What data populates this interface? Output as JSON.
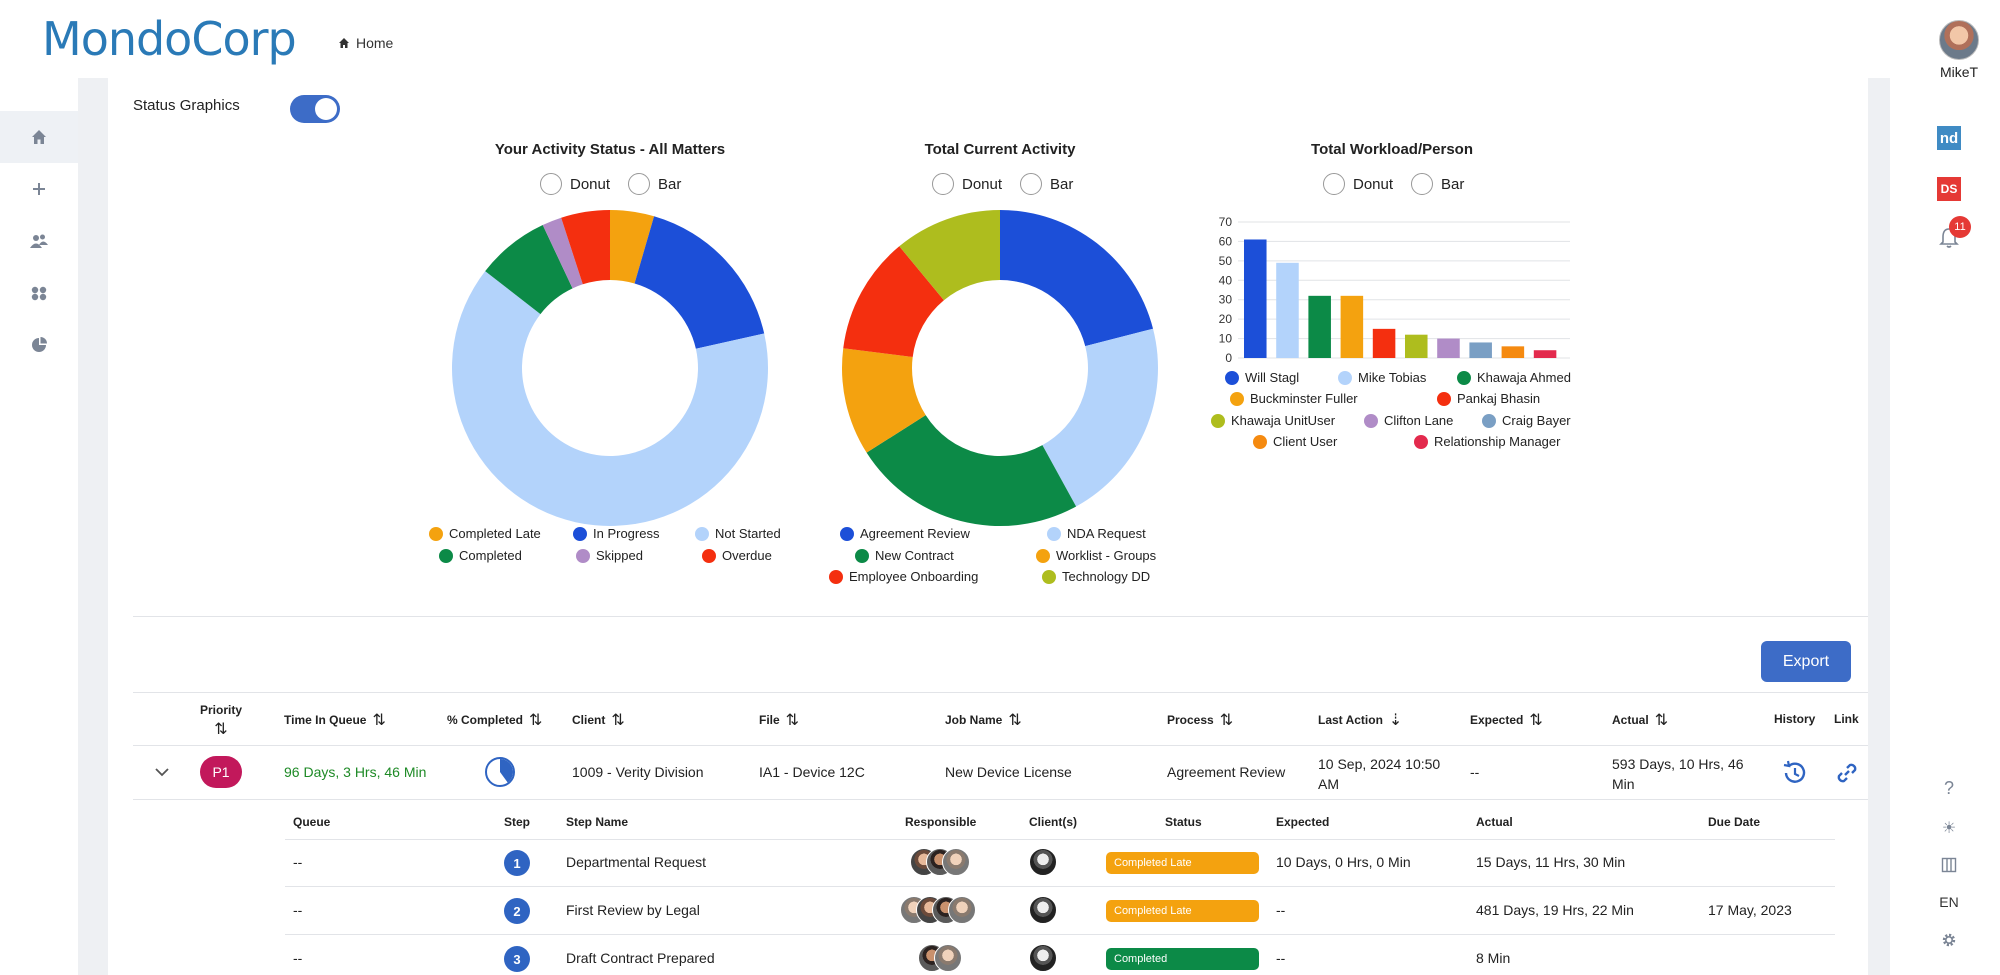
{
  "header": {
    "logo": "MondoCorp",
    "breadcrumb": "Home",
    "user_name": "MikeT"
  },
  "right_rail": {
    "nd_label": "nd",
    "ds_label": "DS",
    "notification_count": "11",
    "language": "EN"
  },
  "status_graphics": {
    "label": "Status Graphics",
    "toggle_on": true
  },
  "charts": {
    "activity": {
      "title": "Your Activity Status - All Matters",
      "opt_donut": "Donut",
      "opt_bar": "Bar",
      "legend": [
        {
          "label": "Completed Late",
          "color": "#f4a20f"
        },
        {
          "label": "In Progress",
          "color": "#1c4fd8"
        },
        {
          "label": "Not Started",
          "color": "#b3d3fb"
        },
        {
          "label": "Completed",
          "color": "#0c8a47"
        },
        {
          "label": "Skipped",
          "color": "#b08cc7"
        },
        {
          "label": "Overdue",
          "color": "#f42f0f"
        }
      ]
    },
    "current": {
      "title": "Total Current Activity",
      "opt_donut": "Donut",
      "opt_bar": "Bar",
      "legend": [
        {
          "label": "Agreement Review",
          "color": "#1c4fd8"
        },
        {
          "label": "NDA Request",
          "color": "#b3d3fb"
        },
        {
          "label": "New Contract",
          "color": "#0c8a47"
        },
        {
          "label": "Worklist - Groups",
          "color": "#f4a20f"
        },
        {
          "label": "Employee Onboarding",
          "color": "#f42f0f"
        },
        {
          "label": "Technology DD",
          "color": "#aebd1e"
        }
      ]
    },
    "workload": {
      "title": "Total Workload/Person",
      "opt_donut": "Donut",
      "opt_bar": "Bar",
      "legend": [
        {
          "label": "Will Stagl",
          "color": "#1c4fd8"
        },
        {
          "label": "Mike Tobias",
          "color": "#b3d3fb"
        },
        {
          "label": "Khawaja Ahmed",
          "color": "#0c8a47"
        },
        {
          "label": "Buckminster Fuller",
          "color": "#f4a20f"
        },
        {
          "label": "Pankaj Bhasin",
          "color": "#f42f0f"
        },
        {
          "label": "Khawaja UnitUser",
          "color": "#aebd1e"
        },
        {
          "label": "Clifton Lane",
          "color": "#b08cc7"
        },
        {
          "label": "Craig Bayer",
          "color": "#7a9fc4"
        },
        {
          "label": "Client User",
          "color": "#f58a10"
        },
        {
          "label": "Relationship Manager",
          "color": "#e32a4d"
        }
      ]
    }
  },
  "chart_data": [
    {
      "type": "pie",
      "title": "Your Activity Status - All Matters",
      "donut": true,
      "categories": [
        "Completed Late",
        "In Progress",
        "Not Started",
        "Completed",
        "Skipped",
        "Overdue"
      ],
      "values": [
        4.5,
        17,
        64,
        7.5,
        2,
        5
      ],
      "colors": [
        "#f4a20f",
        "#1c4fd8",
        "#b3d3fb",
        "#0c8a47",
        "#b08cc7",
        "#f42f0f"
      ]
    },
    {
      "type": "pie",
      "title": "Total Current Activity",
      "donut": true,
      "categories": [
        "Agreement Review",
        "NDA Request",
        "New Contract",
        "Worklist - Groups",
        "Employee Onboarding",
        "Technology DD"
      ],
      "values": [
        21,
        21,
        24,
        11,
        12,
        11
      ],
      "colors": [
        "#1c4fd8",
        "#b3d3fb",
        "#0c8a47",
        "#f4a20f",
        "#f42f0f",
        "#aebd1e"
      ]
    },
    {
      "type": "bar",
      "title": "Total Workload/Person",
      "categories": [
        "Will Stagl",
        "Mike Tobias",
        "Khawaja Ahmed",
        "Buckminster Fuller",
        "Pankaj Bhasin",
        "Khawaja UnitUser",
        "Clifton Lane",
        "Craig Bayer",
        "Client User",
        "Relationship Manager"
      ],
      "values": [
        61,
        49,
        32,
        32,
        15,
        12,
        10,
        8,
        6,
        4
      ],
      "colors": [
        "#1c4fd8",
        "#b3d3fb",
        "#0c8a47",
        "#f4a20f",
        "#f42f0f",
        "#aebd1e",
        "#b08cc7",
        "#7a9fc4",
        "#f58a10",
        "#e32a4d"
      ],
      "ylim": [
        0,
        70
      ],
      "yticks": [
        "70",
        "60",
        "50",
        "40",
        "30",
        "20",
        "10",
        "0"
      ]
    }
  ],
  "export_label": "Export",
  "table": {
    "headers": {
      "priority": "Priority",
      "time_in_queue": "Time In Queue",
      "pct_completed": "% Completed",
      "client": "Client",
      "file": "File",
      "job_name": "Job Name",
      "process": "Process",
      "last_action": "Last Action",
      "expected": "Expected",
      "actual": "Actual",
      "history": "History",
      "link": "Link"
    },
    "row": {
      "priority": "P1",
      "time_in_queue": "96 Days, 3 Hrs, 46 Min",
      "pct_completed": 0.4,
      "client": "1009 - Verity Division",
      "file": "IA1 - Device 12C",
      "job_name": "New Device License",
      "process": "Agreement Review",
      "last_action_line1": "10 Sep, 2024 10:50",
      "last_action_line2": "AM",
      "expected": "--",
      "actual_line1": "593 Days, 10 Hrs, 46",
      "actual_line2": "Min"
    }
  },
  "subtable": {
    "headers": {
      "queue": "Queue",
      "step": "Step",
      "step_name": "Step Name",
      "responsible": "Responsible",
      "clients": "Client(s)",
      "status": "Status",
      "expected": "Expected",
      "actual": "Actual",
      "due_date": "Due Date"
    },
    "rows": [
      {
        "queue": "--",
        "step": "1",
        "step_name": "Departmental Request",
        "status": "Completed Late",
        "status_color": "#f4a20f",
        "expected": "10 Days, 0 Hrs, 0 Min",
        "actual": "15 Days, 11 Hrs, 30 Min",
        "due_date": ""
      },
      {
        "queue": "--",
        "step": "2",
        "step_name": "First Review by Legal",
        "status": "Completed Late",
        "status_color": "#f4a20f",
        "expected": "--",
        "actual": "481 Days, 19 Hrs, 22 Min",
        "due_date": "17 May, 2023"
      },
      {
        "queue": "--",
        "step": "3",
        "step_name": "Draft Contract Prepared",
        "status": "Completed",
        "status_color": "#0c8a47",
        "expected": "--",
        "actual": "8 Min",
        "due_date": ""
      }
    ]
  }
}
